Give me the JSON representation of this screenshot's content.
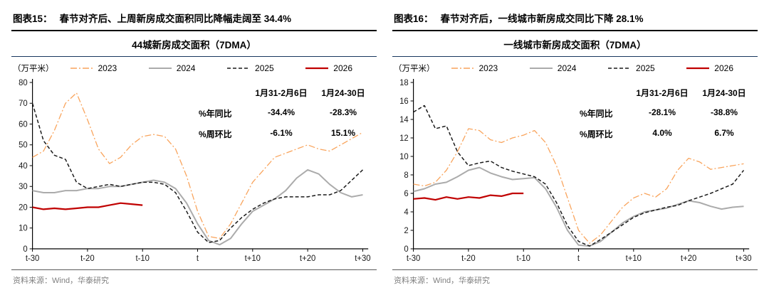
{
  "figures": [
    {
      "tag": "图表15：",
      "title": "春节对齐后、上周新房成交面积同比降幅走阔至 34.4%",
      "chart_title": "44城新房成交面积（7DMA）",
      "source": "资料来源：Wind，华泰研究",
      "table": {
        "headers": [
          "1月31-2月6日",
          "1月24-30日"
        ],
        "rows": [
          {
            "label": "%年同比",
            "values": [
              "-34.4%",
              "-28.3%"
            ]
          },
          {
            "label": "%周环比",
            "values": [
              "-6.1%",
              "15.1%"
            ]
          }
        ]
      }
    },
    {
      "tag": "图表16：",
      "title": "春节对齐后，一线城市新房成交同比下降 28.1%",
      "chart_title": "一线城市新房成交面积（7DMA）",
      "source": "资料来源：Wind，华泰研究",
      "table": {
        "headers": [
          "1月31-2月6日",
          "1月24-30日"
        ],
        "rows": [
          {
            "label": "%年同比",
            "values": [
              "-28.1%",
              "-38.8%"
            ]
          },
          {
            "label": "%周环比",
            "values": [
              "4.0%",
              "6.7%"
            ]
          }
        ]
      }
    }
  ],
  "chart_data": [
    {
      "type": "line",
      "title": "44城新房成交面积（7DMA）",
      "ylabel": "（万平米）",
      "ylim": [
        0,
        80
      ],
      "ytick_step": 10,
      "xlim": [
        -30,
        31
      ],
      "grid": false,
      "legend_position": "top",
      "x": [
        -30,
        -28,
        -26,
        -24,
        -22,
        -20,
        -18,
        -16,
        -14,
        -12,
        -10,
        -8,
        -6,
        -4,
        -2,
        0,
        2,
        4,
        6,
        8,
        10,
        12,
        14,
        16,
        18,
        20,
        22,
        24,
        26,
        28,
        30
      ],
      "xticks": [
        {
          "v": -30,
          "label": "t-30"
        },
        {
          "v": -20,
          "label": "t-20"
        },
        {
          "v": -10,
          "label": "t-10"
        },
        {
          "v": 0,
          "label": "t"
        },
        {
          "v": 10,
          "label": "t+10"
        },
        {
          "v": 20,
          "label": "t+20"
        },
        {
          "v": 30,
          "label": "t+30"
        }
      ],
      "series": [
        {
          "name": "2023",
          "color": "#F9A45C",
          "dash": "dashdot",
          "width": 1.3,
          "values": [
            44,
            47,
            57,
            70,
            75,
            62,
            48,
            41,
            44,
            50,
            54,
            55,
            54,
            48,
            35,
            18,
            6,
            5,
            12,
            22,
            32,
            38,
            44,
            46,
            48,
            50,
            48,
            47,
            50,
            53,
            56
          ]
        },
        {
          "name": "2024",
          "color": "#ABABAB",
          "dash": "solid",
          "width": 2,
          "values": [
            28,
            27,
            27,
            28,
            28,
            29,
            29,
            30,
            30,
            31,
            32,
            33,
            32,
            29,
            22,
            12,
            4,
            2,
            5,
            12,
            18,
            21,
            24,
            28,
            34,
            38,
            36,
            31,
            27,
            25,
            26
          ]
        },
        {
          "name": "2025",
          "color": "#1A1A1A",
          "dash": "dashed",
          "width": 1.5,
          "values": [
            70,
            52,
            45,
            43,
            32,
            29,
            30,
            31,
            30,
            31,
            32,
            32,
            31,
            27,
            18,
            8,
            3,
            4,
            10,
            15,
            19,
            22,
            24,
            25,
            25,
            25,
            26,
            26,
            28,
            33,
            38
          ]
        },
        {
          "name": "2026",
          "color": "#C00000",
          "dash": "solid",
          "width": 2.2,
          "values": [
            20,
            19,
            19.5,
            19,
            19.5,
            20,
            20,
            21,
            22,
            21.5,
            21,
            null,
            null,
            null,
            null,
            null,
            null,
            null,
            null,
            null,
            null,
            null,
            null,
            null,
            null,
            null,
            null,
            null,
            null,
            null,
            null
          ]
        }
      ]
    },
    {
      "type": "line",
      "title": "一线城市新房成交面积（7DMA）",
      "ylabel": "（万平米）",
      "ylim": [
        0,
        18
      ],
      "ytick_step": 2,
      "xlim": [
        -30,
        31
      ],
      "grid": false,
      "legend_position": "top",
      "x": [
        -30,
        -28,
        -26,
        -24,
        -22,
        -20,
        -18,
        -16,
        -14,
        -12,
        -10,
        -8,
        -6,
        -4,
        -2,
        0,
        2,
        4,
        6,
        8,
        10,
        12,
        14,
        16,
        18,
        20,
        22,
        24,
        26,
        28,
        30
      ],
      "xticks": [
        {
          "v": -30,
          "label": "t-30"
        },
        {
          "v": -20,
          "label": "t-20"
        },
        {
          "v": -10,
          "label": "t-10"
        },
        {
          "v": 0,
          "label": "t"
        },
        {
          "v": 10,
          "label": "t+10"
        },
        {
          "v": 20,
          "label": "t+20"
        },
        {
          "v": 30,
          "label": "t+30"
        }
      ],
      "series": [
        {
          "name": "2023",
          "color": "#F9A45C",
          "dash": "dashdot",
          "width": 1.3,
          "values": [
            7,
            6.8,
            7.2,
            8.5,
            10.5,
            13,
            12.8,
            11.8,
            11.5,
            12,
            12.3,
            12.8,
            11.5,
            9,
            5.5,
            2,
            0.6,
            1.5,
            3,
            4.5,
            5.5,
            6,
            5.6,
            6.5,
            8.5,
            9.8,
            9.4,
            8.6,
            8.8,
            9,
            9.2
          ]
        },
        {
          "name": "2024",
          "color": "#ABABAB",
          "dash": "solid",
          "width": 2,
          "values": [
            6.2,
            6.5,
            7,
            7.2,
            7.8,
            8.5,
            8.8,
            8.2,
            7.8,
            7.5,
            7.6,
            7.7,
            6.5,
            4.5,
            2,
            0.4,
            0.3,
            0.8,
            1.8,
            2.8,
            3.5,
            4,
            4.2,
            4.4,
            4.8,
            5.2,
            5,
            4.6,
            4.3,
            4.5,
            4.6
          ]
        },
        {
          "name": "2025",
          "color": "#1A1A1A",
          "dash": "dashed",
          "width": 1.5,
          "values": [
            14.8,
            15.5,
            13,
            13.3,
            10.5,
            9,
            9.3,
            9.5,
            8.8,
            8.4,
            8.1,
            7.8,
            7,
            5,
            2.5,
            0.8,
            0.3,
            1,
            1.8,
            2.6,
            3.4,
            3.9,
            4.2,
            4.5,
            4.7,
            5.2,
            5.6,
            6,
            6.5,
            7,
            8.5
          ]
        },
        {
          "name": "2026",
          "color": "#C00000",
          "dash": "solid",
          "width": 2.2,
          "values": [
            5.4,
            5.5,
            5.3,
            5.6,
            5.4,
            5.6,
            5.5,
            5.8,
            5.7,
            6,
            6,
            null,
            null,
            null,
            null,
            null,
            null,
            null,
            null,
            null,
            null,
            null,
            null,
            null,
            null,
            null,
            null,
            null,
            null,
            null,
            null
          ]
        }
      ]
    }
  ]
}
